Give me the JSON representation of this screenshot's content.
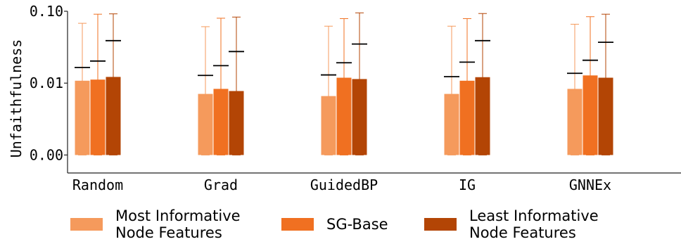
{
  "chart_data": {
    "type": "bar",
    "title": "",
    "xlabel": "",
    "ylabel": "Unfaithfulness",
    "yscale": "symlog",
    "ylim": [
      -0.0025,
      0.1
    ],
    "yticks": [
      0.0,
      0.01,
      0.1
    ],
    "ytick_labels": [
      "0.00",
      "0.01",
      "0.10"
    ],
    "grid": false,
    "legend_position": "bottom",
    "categories": [
      "Random",
      "Grad",
      "GuidedBP",
      "IG",
      "GNNEx"
    ],
    "series": [
      {
        "name": "Most Informative\nNode Features",
        "color": "#f59a5c",
        "values": [
          0.0108,
          0.0085,
          0.0082,
          0.0085,
          0.0092
        ],
        "error_low": [
          0.0,
          0.0,
          0.0,
          0.0,
          0.0
        ],
        "error_high": [
          0.068,
          0.061,
          0.062,
          0.062,
          0.066
        ],
        "reference_mean": [
          0.0165,
          0.0128,
          0.013,
          0.0123,
          0.0137
        ]
      },
      {
        "name": "SG-Base",
        "color": "#f07021",
        "values": [
          0.0112,
          0.0092,
          0.0119,
          0.0108,
          0.0128
        ],
        "error_low": [
          0.0,
          0.0,
          0.0,
          0.0,
          0.0
        ],
        "error_high": [
          0.091,
          0.08,
          0.079,
          0.079,
          0.084
        ],
        "reference_mean": [
          0.0203,
          0.0175,
          0.0192,
          0.0196,
          0.0208
        ]
      },
      {
        "name": "Least Informative\nNode Features",
        "color": "#b34505",
        "values": [
          0.0122,
          0.0089,
          0.0114,
          0.0121,
          0.0119
        ],
        "error_low": [
          0.0,
          0.0,
          0.0,
          0.0,
          0.0
        ],
        "error_high": [
          0.092,
          0.083,
          0.095,
          0.093,
          0.091
        ],
        "reference_mean": [
          0.039,
          0.0275,
          0.035,
          0.039,
          0.037
        ]
      }
    ]
  }
}
